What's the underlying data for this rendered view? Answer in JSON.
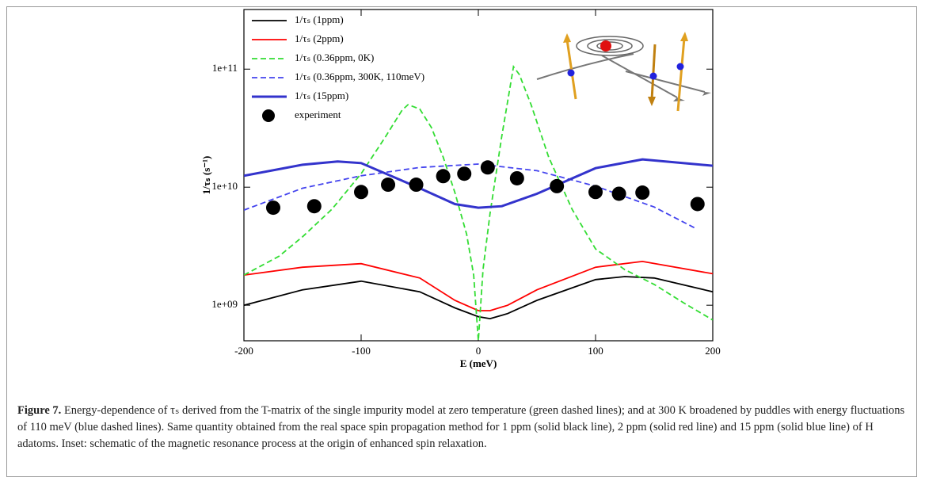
{
  "chart_data": {
    "type": "line",
    "xlabel": "E (meV)",
    "ylabel": "1/τₛ (s⁻¹)",
    "xlim": [
      -200,
      200
    ],
    "xticks": [
      -200,
      -100,
      0,
      100,
      200
    ],
    "ylim": [
      500000000,
      320000000000
    ],
    "log_y": true,
    "yticks": [
      {
        "value": 1000000000,
        "label": "1e+09"
      },
      {
        "value": 10000000000,
        "label": "1e+10"
      },
      {
        "value": 100000000000,
        "label": "1e+11"
      }
    ],
    "legend": "upper left",
    "series": [
      {
        "name": "1/τₛ (1ppm)",
        "color": "#000000",
        "style": "solid",
        "x": [
          -200,
          -150,
          -100,
          -50,
          -20,
          0,
          10,
          25,
          50,
          100,
          125,
          150,
          200
        ],
        "values": [
          1000000000,
          1350000000,
          1600000000,
          1300000000,
          950000000,
          800000000,
          770000000,
          850000000,
          1100000000,
          1650000000,
          1750000000,
          1700000000,
          1300000000
        ]
      },
      {
        "name": "1/τₛ (2ppm)",
        "color": "#ff0000",
        "style": "solid",
        "x": [
          -200,
          -150,
          -100,
          -50,
          -20,
          0,
          10,
          25,
          50,
          100,
          140,
          200
        ],
        "values": [
          1800000000,
          2100000000,
          2250000000,
          1700000000,
          1100000000,
          900000000,
          900000000,
          1000000000,
          1350000000,
          2100000000,
          2350000000,
          1850000000
        ]
      },
      {
        "name": "1/τₛ (0.36ppm, 0K)",
        "color": "#33dd33",
        "style": "dashed",
        "x": [
          -200,
          -170,
          -150,
          -125,
          -100,
          -80,
          -65,
          -60,
          -50,
          -40,
          -30,
          -20,
          -10,
          -4,
          0,
          4,
          10,
          20,
          30,
          35,
          45,
          60,
          80,
          100,
          125,
          150,
          175,
          200
        ],
        "values": [
          1800000000,
          2600000000,
          3800000000,
          6500000000,
          13000000000,
          26000000000,
          45000000000,
          50000000000,
          46000000000,
          32000000000,
          18000000000,
          9000000000,
          4000000000,
          1800000000,
          500000000,
          2000000000,
          6000000000,
          27000000000,
          105000000000,
          90000000000,
          50000000000,
          18000000000,
          6500000000,
          3000000000,
          2000000000,
          1500000000,
          1050000000,
          750000000
        ]
      },
      {
        "name": "1/τₛ (0.36ppm, 300K, 110meV)",
        "color": "#4444ee",
        "style": "dashed",
        "x": [
          -200,
          -150,
          -100,
          -50,
          0,
          50,
          100,
          150,
          185
        ],
        "values": [
          6400000000,
          9800000000,
          12500000000,
          14700000000,
          15700000000,
          13800000000,
          10200000000,
          6800000000,
          4500000000
        ]
      },
      {
        "name": "1/τₛ (15ppm)",
        "color": "#3333cc",
        "style": "thick",
        "x": [
          -200,
          -150,
          -120,
          -100,
          -50,
          -20,
          0,
          20,
          50,
          100,
          140,
          200
        ],
        "values": [
          12500000000,
          15500000000,
          16500000000,
          16000000000,
          9800000000,
          7200000000,
          6700000000,
          6900000000,
          8800000000,
          14500000000,
          17200000000,
          15200000000
        ]
      },
      {
        "name": "experiment",
        "color": "#000000",
        "style": "markers",
        "x": [
          -175,
          -140,
          -100,
          -77,
          -53,
          -30,
          -12,
          8,
          33,
          67,
          100,
          120,
          140,
          187
        ],
        "values": [
          6700000000,
          6900000000,
          9100000000,
          10500000000,
          10500000000,
          12400000000,
          13000000000,
          14700000000,
          11900000000,
          10200000000,
          9100000000,
          8800000000,
          9000000000,
          7200000000
        ]
      }
    ]
  },
  "caption": {
    "label": "Figure 7.",
    "text": "Energy-dependence of τₛ derived from the T-matrix of the single impurity model at zero temperature (green dashed lines); and at 300 K broadened by puddles with energy fluctuations of 110 meV (blue dashed lines). Same quantity obtained from the real space spin propagation method for 1 ppm (solid black line), 2 ppm (solid red line) and 15 ppm (solid blue line) of H adatoms. Inset: schematic of the magnetic resonance process at the origin of enhanced spin relaxation."
  }
}
